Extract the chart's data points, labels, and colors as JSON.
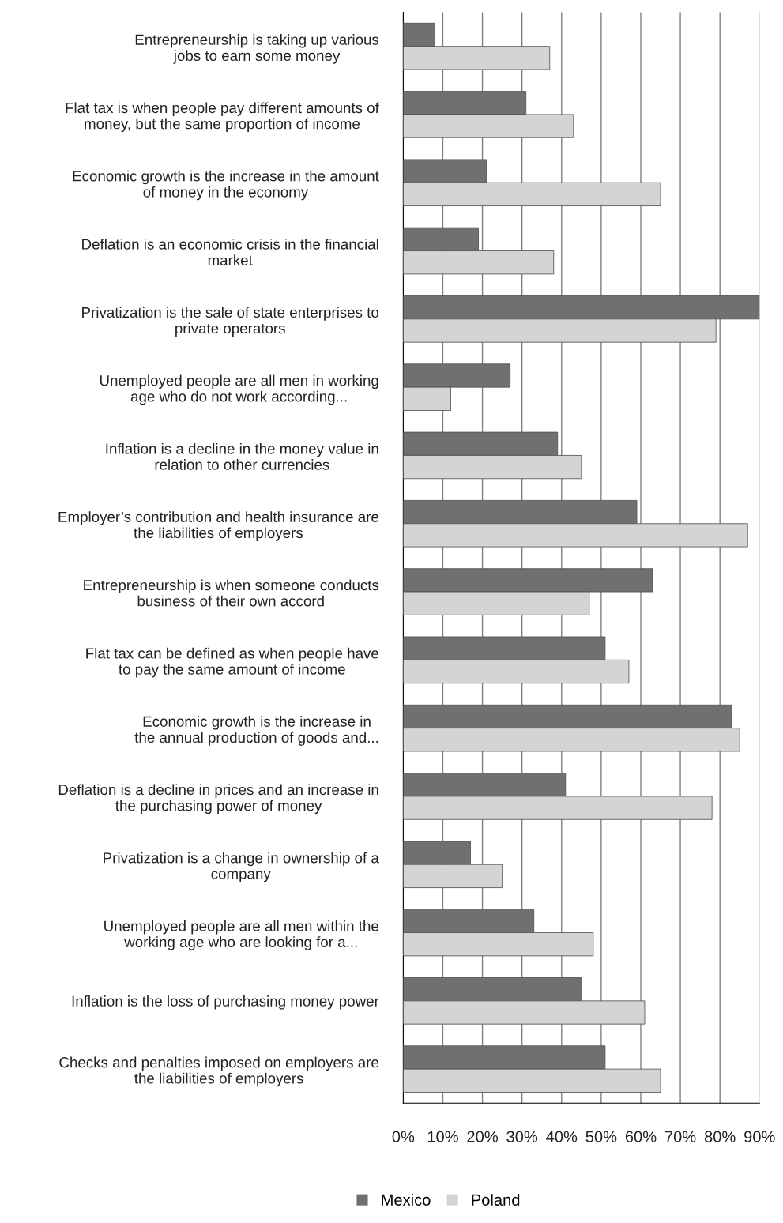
{
  "chart_data": {
    "type": "bar",
    "orientation": "horizontal",
    "categories": [
      "Entrepreneurship is taking up various\njobs to earn some money",
      "Flat tax is when people pay different amounts of\nmoney, but the same proportion of income",
      "Economic growth is the increase in the amount\nof money in the economy",
      "Deflation is an economic crisis in the financial\nmarket",
      "Privatization is the sale of state enterprises to\nprivate operators",
      "Unemployed people are all men in working\nage who do not work according...",
      "Inflation is a decline in the money value in\nrelation to other currencies",
      "Employer’s contribution and health insurance are\nthe liabilities of employers",
      "Entrepreneurship is when someone conducts\nbusiness of their own accord",
      "Flat tax can be defined as when people have\nto pay the same amount of income",
      "Economic growth is the increase in\nthe annual production of goods and...",
      "Deflation is a decline in prices and an increase in\nthe purchasing power of money",
      "Privatization is a change in ownership of a\ncompany",
      "Unemployed people are all men within the\nworking age who are looking for a...",
      "Inflation is the loss of purchasing money power",
      "Checks and penalties imposed on employers are\nthe liabilities of employers"
    ],
    "series": [
      {
        "name": "Mexico",
        "color": "#707070",
        "values": [
          8,
          31,
          21,
          19,
          90,
          27,
          39,
          59,
          63,
          51,
          83,
          41,
          17,
          33,
          45,
          51
        ]
      },
      {
        "name": "Poland",
        "color": "#d4d4d4",
        "values": [
          37,
          43,
          65,
          38,
          79,
          12,
          45,
          87,
          47,
          57,
          85,
          78,
          25,
          48,
          61,
          65
        ]
      }
    ],
    "xlim": [
      0,
      90
    ],
    "xticks": [
      {
        "value": 0,
        "label": "0%"
      },
      {
        "value": 10,
        "label": "10%"
      },
      {
        "value": 20,
        "label": "20%"
      },
      {
        "value": 30,
        "label": "30%"
      },
      {
        "value": 40,
        "label": "40%"
      },
      {
        "value": 50,
        "label": "50%"
      },
      {
        "value": 60,
        "label": "60%"
      },
      {
        "value": 70,
        "label": "70%"
      },
      {
        "value": 80,
        "label": "80%"
      },
      {
        "value": 90,
        "label": "90%"
      }
    ],
    "grid": "x",
    "legend": "bottom"
  }
}
